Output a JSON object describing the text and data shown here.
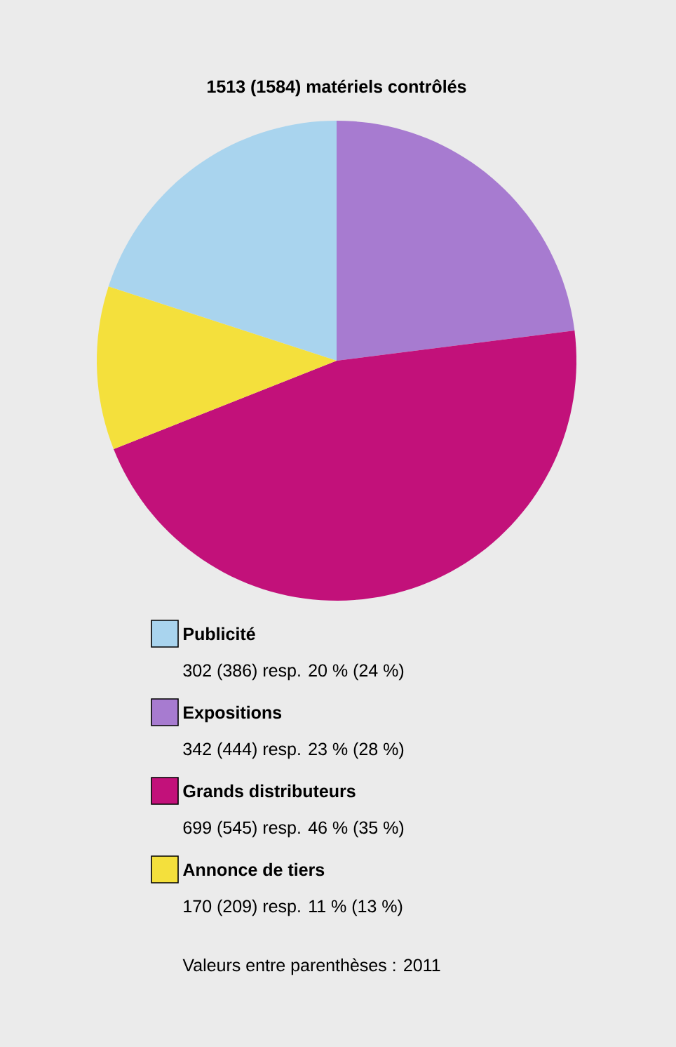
{
  "chart_data": {
    "type": "pie",
    "title": "1513 (1584) matériels contrôlés",
    "categories": [
      "Publicité",
      "Expositions",
      "Grands distributeurs",
      "Annonce de tiers"
    ],
    "values": [
      20,
      23,
      46,
      11
    ],
    "colors": [
      "#a9d4ee",
      "#a77bd0",
      "#c2117a",
      "#f4e03c"
    ],
    "legend": "bottom",
    "annotations": [
      "302 (386) resp. 20 % (24 %)",
      "342 (444) resp. 23 % (28 %)",
      "699 (545) resp. 46 % (35 %)",
      "170 (209) resp. 11 % (13 %)",
      "Valeurs entre parenthèses : 2011"
    ]
  }
}
